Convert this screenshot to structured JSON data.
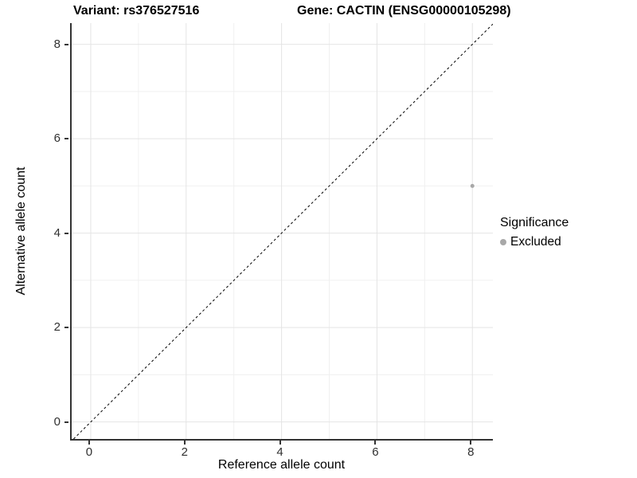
{
  "chart_data": {
    "type": "scatter",
    "title_left": "Variant: rs376527516",
    "title_right": "Gene: CACTIN (ENSG00000105298)",
    "xlabel": "Reference allele count",
    "ylabel": "Alternative allele count",
    "xlim": [
      -0.4,
      8.43
    ],
    "ylim": [
      -0.36,
      8.45
    ],
    "xticks": [
      0,
      2,
      4,
      6,
      8
    ],
    "yticks": [
      0,
      2,
      4,
      6,
      8
    ],
    "xticks_minor": [
      1,
      3,
      5,
      7
    ],
    "yticks_minor": [
      1,
      3,
      5,
      7
    ],
    "grid": true,
    "points": [
      {
        "x": 8,
        "y": 5,
        "significance": "Excluded",
        "color": "#a8a8a8",
        "radius": 2.5
      }
    ],
    "identity_line": {
      "equation": "y = x",
      "style": "dashed",
      "color": "#000000",
      "width": 1,
      "dash": "3,3"
    },
    "legend": {
      "title": "Significance",
      "position": "right",
      "entries": [
        {
          "label": "Excluded",
          "color": "#a8a8a8",
          "marker": "circle"
        }
      ]
    },
    "colors": {
      "background": "#ffffff",
      "grid_major": "#e4e4e4",
      "grid_minor": "#f0f0f0",
      "axis_line": "#333333",
      "tick_label": "#303030",
      "tick_mark": "#333333"
    }
  }
}
